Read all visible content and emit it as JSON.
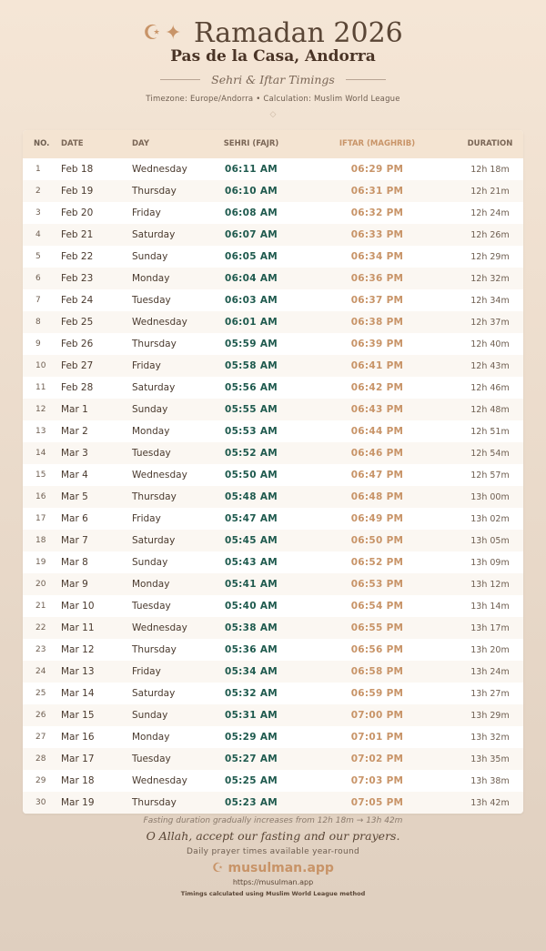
{
  "header": {
    "icon1": "☪",
    "icon2": "✦",
    "title": "Ramadan 2026",
    "city": "Pas de la Casa, Andorra",
    "subtitle": "Sehri & Iftar Timings",
    "info": "Timezone: Europe/Andorra • Calculation: Muslim World League",
    "ornament": "◇"
  },
  "table": {
    "columns": [
      "NO.",
      "DATE",
      "DAY",
      "SEHRI (FAJR)",
      "IFTAR (MAGHRIB)",
      "DURATION"
    ],
    "rows": [
      [
        "1",
        "Feb 18",
        "Wednesday",
        "06:11 AM",
        "06:29 PM",
        "12h 18m"
      ],
      [
        "2",
        "Feb 19",
        "Thursday",
        "06:10 AM",
        "06:31 PM",
        "12h 21m"
      ],
      [
        "3",
        "Feb 20",
        "Friday",
        "06:08 AM",
        "06:32 PM",
        "12h 24m"
      ],
      [
        "4",
        "Feb 21",
        "Saturday",
        "06:07 AM",
        "06:33 PM",
        "12h 26m"
      ],
      [
        "5",
        "Feb 22",
        "Sunday",
        "06:05 AM",
        "06:34 PM",
        "12h 29m"
      ],
      [
        "6",
        "Feb 23",
        "Monday",
        "06:04 AM",
        "06:36 PM",
        "12h 32m"
      ],
      [
        "7",
        "Feb 24",
        "Tuesday",
        "06:03 AM",
        "06:37 PM",
        "12h 34m"
      ],
      [
        "8",
        "Feb 25",
        "Wednesday",
        "06:01 AM",
        "06:38 PM",
        "12h 37m"
      ],
      [
        "9",
        "Feb 26",
        "Thursday",
        "05:59 AM",
        "06:39 PM",
        "12h 40m"
      ],
      [
        "10",
        "Feb 27",
        "Friday",
        "05:58 AM",
        "06:41 PM",
        "12h 43m"
      ],
      [
        "11",
        "Feb 28",
        "Saturday",
        "05:56 AM",
        "06:42 PM",
        "12h 46m"
      ],
      [
        "12",
        "Mar 1",
        "Sunday",
        "05:55 AM",
        "06:43 PM",
        "12h 48m"
      ],
      [
        "13",
        "Mar 2",
        "Monday",
        "05:53 AM",
        "06:44 PM",
        "12h 51m"
      ],
      [
        "14",
        "Mar 3",
        "Tuesday",
        "05:52 AM",
        "06:46 PM",
        "12h 54m"
      ],
      [
        "15",
        "Mar 4",
        "Wednesday",
        "05:50 AM",
        "06:47 PM",
        "12h 57m"
      ],
      [
        "16",
        "Mar 5",
        "Thursday",
        "05:48 AM",
        "06:48 PM",
        "13h 00m"
      ],
      [
        "17",
        "Mar 6",
        "Friday",
        "05:47 AM",
        "06:49 PM",
        "13h 02m"
      ],
      [
        "18",
        "Mar 7",
        "Saturday",
        "05:45 AM",
        "06:50 PM",
        "13h 05m"
      ],
      [
        "19",
        "Mar 8",
        "Sunday",
        "05:43 AM",
        "06:52 PM",
        "13h 09m"
      ],
      [
        "20",
        "Mar 9",
        "Monday",
        "05:41 AM",
        "06:53 PM",
        "13h 12m"
      ],
      [
        "21",
        "Mar 10",
        "Tuesday",
        "05:40 AM",
        "06:54 PM",
        "13h 14m"
      ],
      [
        "22",
        "Mar 11",
        "Wednesday",
        "05:38 AM",
        "06:55 PM",
        "13h 17m"
      ],
      [
        "23",
        "Mar 12",
        "Thursday",
        "05:36 AM",
        "06:56 PM",
        "13h 20m"
      ],
      [
        "24",
        "Mar 13",
        "Friday",
        "05:34 AM",
        "06:58 PM",
        "13h 24m"
      ],
      [
        "25",
        "Mar 14",
        "Saturday",
        "05:32 AM",
        "06:59 PM",
        "13h 27m"
      ],
      [
        "26",
        "Mar 15",
        "Sunday",
        "05:31 AM",
        "07:00 PM",
        "13h 29m"
      ],
      [
        "27",
        "Mar 16",
        "Monday",
        "05:29 AM",
        "07:01 PM",
        "13h 32m"
      ],
      [
        "28",
        "Mar 17",
        "Tuesday",
        "05:27 AM",
        "07:02 PM",
        "13h 35m"
      ],
      [
        "29",
        "Mar 18",
        "Wednesday",
        "05:25 AM",
        "07:03 PM",
        "13h 38m"
      ],
      [
        "30",
        "Mar 19",
        "Thursday",
        "05:23 AM",
        "07:05 PM",
        "13h 42m"
      ]
    ]
  },
  "footer": {
    "note": "Fasting duration gradually increases from 12h 18m → 13h 42m",
    "dua": "O Allah, accept our fasting and our prayers.",
    "tagline": "Daily prayer times available year-round",
    "brand_icon": "☪",
    "brand": "musulman.app",
    "url": "https://musulman.app",
    "method": "Timings calculated using Muslim World League method"
  },
  "colors": {
    "sehri": "#1f5a4e",
    "iftar": "#c89468",
    "header_bg": "#f4e4d2"
  }
}
